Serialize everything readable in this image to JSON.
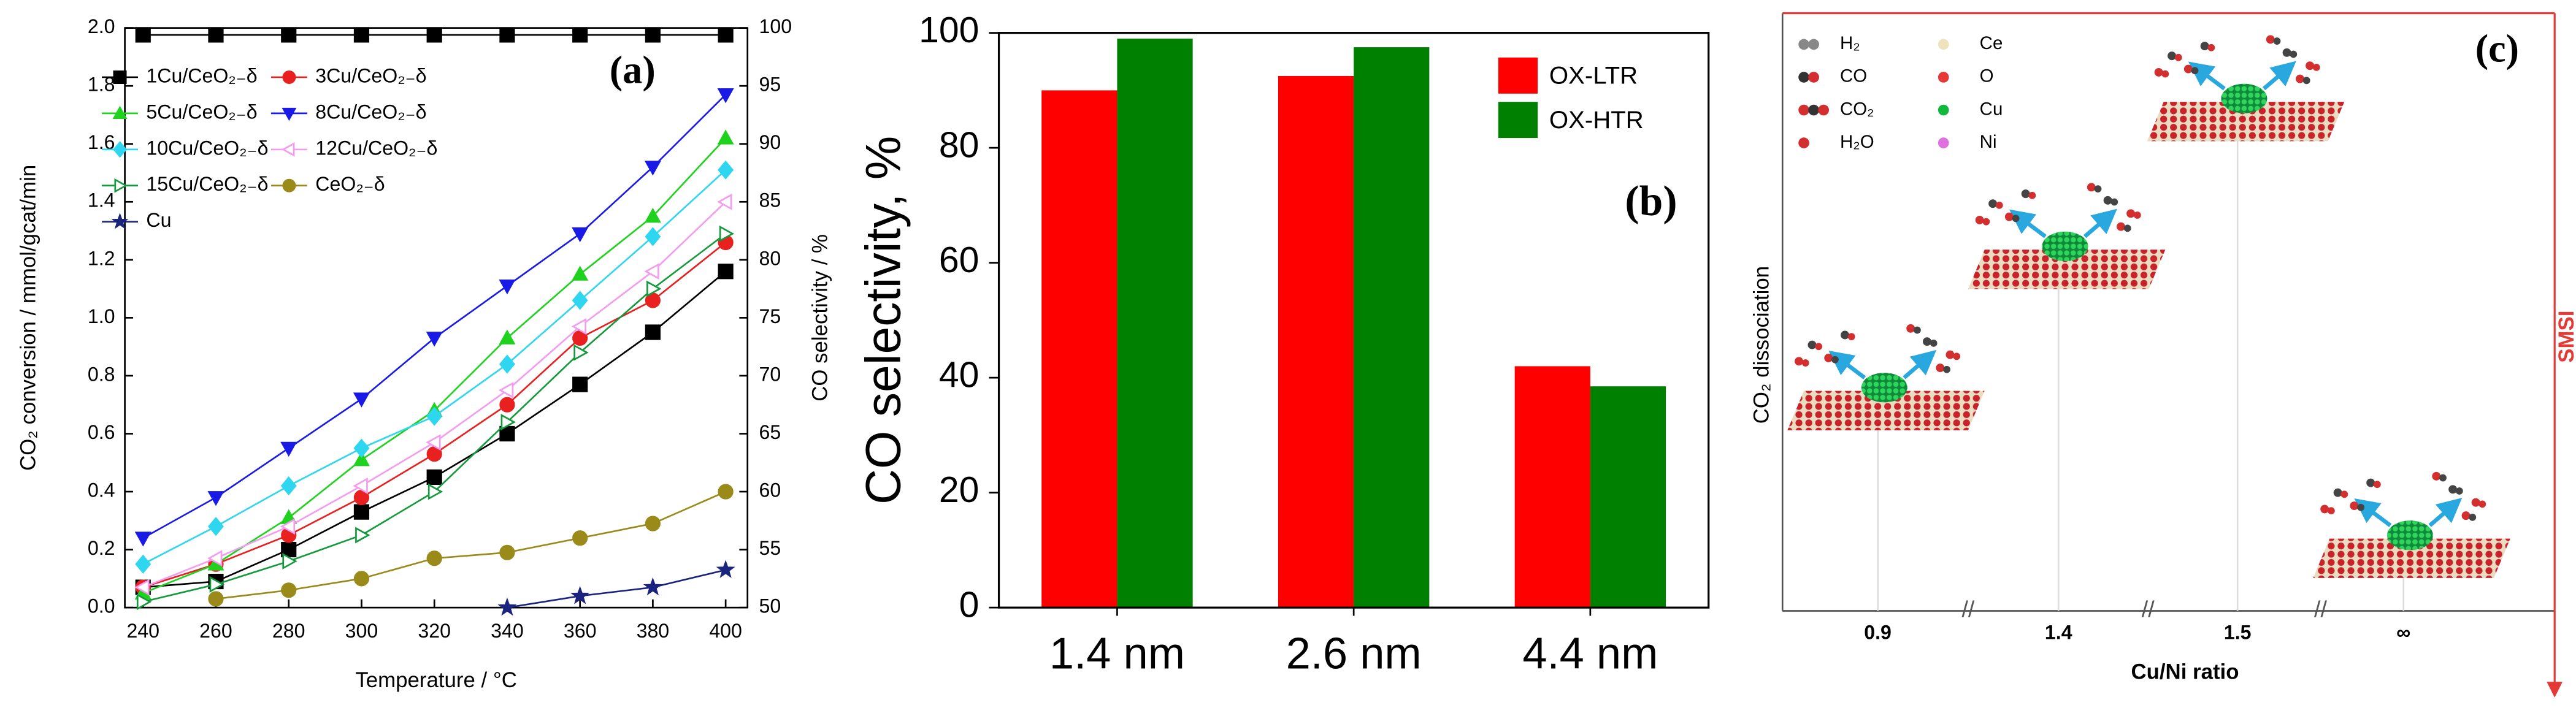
{
  "chart_data": [
    {
      "type": "line",
      "annotation": "(a)",
      "xlabel": "Temperature / °C",
      "ylabel": "CO₂ conversion / mmol/gcat/min",
      "y2label": "CO selectivity / %",
      "x": [
        240,
        260,
        280,
        300,
        320,
        340,
        360,
        380,
        400
      ],
      "xlim": [
        235,
        406
      ],
      "xticks": [
        240,
        260,
        280,
        300,
        320,
        340,
        360,
        380,
        400
      ],
      "ylim": [
        0,
        2
      ],
      "yticks": [
        {
          "value": 0,
          "label": "0.0"
        },
        0.2,
        0.4,
        0.6,
        0.8,
        {
          "value": 1,
          "label": "1.0"
        },
        1.2,
        1.4,
        1.6,
        1.8,
        {
          "value": 2,
          "label": "2.0"
        }
      ],
      "y2lim": [
        50,
        100
      ],
      "y2ticks": [
        50,
        55,
        60,
        65,
        70,
        75,
        80,
        85,
        90,
        95,
        100
      ],
      "series": [
        {
          "name": "1Cu/CeO₂₋δ",
          "color": "#000000",
          "marker": "square",
          "values": [
            0.07,
            0.09,
            0.2,
            0.33,
            0.45,
            0.6,
            0.77,
            0.95,
            1.16
          ]
        },
        {
          "name": "3Cu/CeO₂₋δ",
          "color": "#e8201f",
          "marker": "circle",
          "values": [
            0.07,
            0.15,
            0.25,
            0.38,
            0.53,
            0.7,
            0.93,
            1.06,
            1.26
          ]
        },
        {
          "name": "5Cu/CeO₂₋δ",
          "color": "#1ed21e",
          "marker": "triangle-up",
          "values": [
            0.05,
            0.15,
            0.31,
            0.51,
            0.68,
            0.93,
            1.15,
            1.35,
            1.62
          ]
        },
        {
          "name": "8Cu/CeO₂₋δ",
          "color": "#1a1ae6",
          "marker": "triangle-down",
          "values": [
            0.24,
            0.38,
            0.55,
            0.72,
            0.93,
            1.11,
            1.29,
            1.52,
            1.77
          ]
        },
        {
          "name": "10Cu/CeO₂₋δ",
          "color": "#2fd6f0",
          "marker": "diamond",
          "values": [
            0.15,
            0.28,
            0.42,
            0.55,
            0.66,
            0.84,
            1.06,
            1.28,
            1.51
          ]
        },
        {
          "name": "12Cu/CeO₂₋δ",
          "color": "#f49cf0",
          "marker": "triangle-left",
          "values": [
            0.07,
            0.17,
            0.28,
            0.42,
            0.57,
            0.75,
            0.97,
            1.16,
            1.4
          ]
        },
        {
          "name": "15Cu/CeO₂₋δ",
          "color": "#149a3c",
          "marker": "triangle-right",
          "values": [
            0.02,
            0.08,
            0.16,
            0.25,
            0.4,
            0.64,
            0.88,
            1.1,
            1.29
          ]
        },
        {
          "name": "CeO₂₋δ",
          "color": "#9a8a1a",
          "marker": "circle",
          "values": [
            null,
            0.03,
            0.06,
            0.1,
            0.17,
            0.19,
            0.24,
            0.29,
            0.4
          ]
        },
        {
          "name": "Cu",
          "color": "#1a237e",
          "marker": "star",
          "values": [
            null,
            null,
            null,
            null,
            null,
            0,
            0.04,
            0.07,
            0.13
          ]
        },
        {
          "color": "#000000",
          "marker": "square",
          "axis": "y2",
          "values": [
            99.4,
            99.4,
            99.4,
            99.4,
            99.4,
            99.4,
            99.4,
            99.4,
            99.4
          ]
        }
      ]
    },
    {
      "type": "bar",
      "annotation": "(b)",
      "ylabel": "CO selectivity, %",
      "categories": [
        "1.4 nm",
        "2.6 nm",
        "4.4 nm"
      ],
      "ylim": [
        0,
        100
      ],
      "yticks": [
        0,
        20,
        40,
        60,
        80,
        100
      ],
      "legend": "top-right",
      "series": [
        {
          "name": "OX-LTR",
          "color": "#ff0000",
          "values": [
            90,
            92.5,
            42
          ]
        },
        {
          "name": "OX-HTR",
          "color": "#008000",
          "values": [
            99,
            97.5,
            38.5
          ]
        }
      ]
    },
    {
      "type": "scheme",
      "annotation": "(c)",
      "xlabel": "Cu/Ni ratio",
      "ylabel": "CO₂ dissociation",
      "side_label": "SMSI",
      "categories": [
        "0.9",
        "1.4",
        "1.5",
        "∞"
      ],
      "legend": [
        "H₂",
        "CO",
        "CO₂",
        "H₂O",
        "Ce",
        "O",
        "Cu",
        "Ni"
      ]
    }
  ]
}
